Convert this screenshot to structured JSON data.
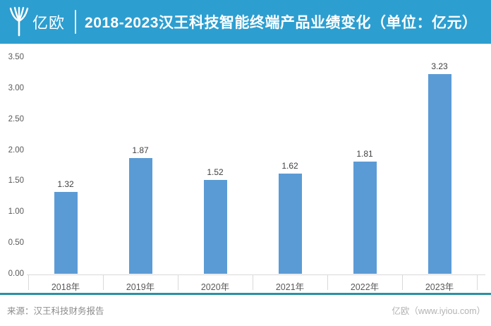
{
  "header": {
    "logo_text": "亿欧",
    "title": "2018-2023汉王科技智能终端产品业绩变化（单位：亿元）"
  },
  "chart_data": {
    "type": "bar",
    "title": "2018-2023汉王科技智能终端产品业绩变化（单位：亿元）",
    "categories": [
      "2018年",
      "2019年",
      "2020年",
      "2021年",
      "2022年",
      "2023年"
    ],
    "values": [
      1.32,
      1.87,
      1.52,
      1.62,
      1.81,
      3.23
    ],
    "value_labels": [
      "1.32",
      "1.87",
      "1.52",
      "1.62",
      "1.81",
      "3.23"
    ],
    "xlabel": "",
    "ylabel": "",
    "ylim": [
      0,
      3.5
    ],
    "ytick_labels": [
      "0.00",
      "0.50",
      "1.00",
      "1.50",
      "2.00",
      "2.50",
      "3.00",
      "3.50"
    ],
    "grid": false,
    "legend": false,
    "bar_color": "#5B9BD5"
  },
  "footer": {
    "source": "来源：汉王科技财务报告",
    "brand": "亿欧（www.iyiou.com）"
  },
  "colors": {
    "header_bg": "#2D9ED0",
    "header_text": "#FFFFFF",
    "bar": "#5B9BD5",
    "teal_divider": "#2B90A5",
    "axis_gray": "#D9D9D9"
  }
}
